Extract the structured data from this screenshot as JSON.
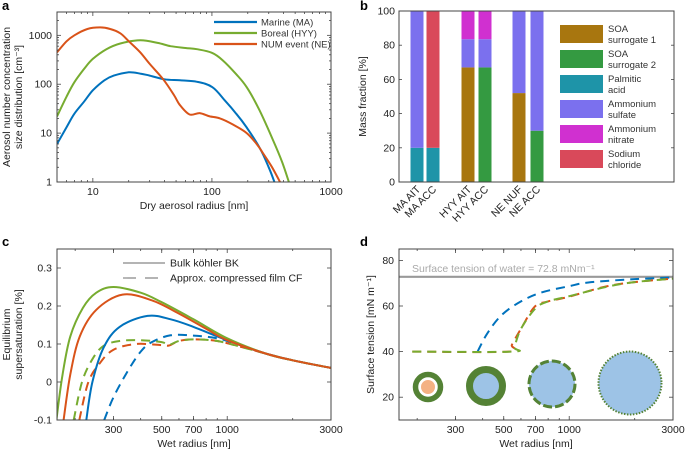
{
  "chart_data": [
    {
      "panel": "a",
      "type": "line",
      "xlabel": "Dry aerosol radius [nm]",
      "ylabel": [
        "Aerosol number concentration",
        "size distribution [cm⁻³]"
      ],
      "xscale": "log",
      "yscale": "log",
      "xlim": [
        5,
        1000
      ],
      "ylim": [
        1,
        3000
      ],
      "xticks": [
        10,
        100,
        1000
      ],
      "yticks": [
        1,
        10,
        100,
        1000
      ],
      "legend_position": "top-right",
      "series": [
        {
          "name": "Marine (MA)",
          "color": "#0072BD",
          "style": "solid",
          "points": [
            [
              5,
              6
            ],
            [
              6,
              13
            ],
            [
              7,
              25
            ],
            [
              8.5,
              45
            ],
            [
              10,
              75
            ],
            [
              12.5,
              120
            ],
            [
              15,
              150
            ],
            [
              20,
              175
            ],
            [
              25,
              165
            ],
            [
              30,
              150
            ],
            [
              40,
              126
            ],
            [
              54,
              120
            ],
            [
              75,
              112
            ],
            [
              101,
              87
            ],
            [
              130,
              45
            ],
            [
              160,
              25
            ],
            [
              196,
              13
            ],
            [
              253,
              4.9
            ],
            [
              300,
              2
            ],
            [
              335,
              1
            ]
          ]
        },
        {
          "name": "Boreal (HYY)",
          "color": "#77AC30",
          "style": "solid",
          "points": [
            [
              5,
              22
            ],
            [
              6,
              55
            ],
            [
              7,
              110
            ],
            [
              8.5,
              210
            ],
            [
              10,
              330
            ],
            [
              13,
              520
            ],
            [
              17,
              680
            ],
            [
              25,
              790
            ],
            [
              35,
              700
            ],
            [
              45,
              600
            ],
            [
              60,
              550
            ],
            [
              75,
              520
            ],
            [
              100,
              440
            ],
            [
              123,
              310
            ],
            [
              160,
              160
            ],
            [
              196,
              87
            ],
            [
              250,
              30
            ],
            [
              326,
              7.2
            ],
            [
              390,
              2.5
            ],
            [
              443,
              1
            ]
          ]
        },
        {
          "name": "NUM event (NE)",
          "color": "#D95319",
          "style": "solid",
          "points": [
            [
              5,
              450
            ],
            [
              6,
              750
            ],
            [
              7,
              1000
            ],
            [
              9,
              1350
            ],
            [
              11.5,
              1450
            ],
            [
              14,
              1350
            ],
            [
              17,
              1100
            ],
            [
              20,
              760
            ],
            [
              25,
              450
            ],
            [
              30,
              260
            ],
            [
              39,
              126
            ],
            [
              48,
              60
            ],
            [
              54,
              37
            ],
            [
              65,
              24
            ],
            [
              79,
              25.6
            ],
            [
              96,
              22
            ],
            [
              117,
              20
            ],
            [
              150,
              15
            ],
            [
              196,
              10
            ],
            [
              240,
              5.8
            ],
            [
              268,
              3.9
            ],
            [
              320,
              2
            ],
            [
              373,
              1
            ]
          ]
        }
      ]
    },
    {
      "panel": "b",
      "type": "bar",
      "stacked": true,
      "ylabel": "Mass fraction [%]",
      "ylim": [
        0,
        100
      ],
      "yticks": [
        0,
        20,
        40,
        60,
        80,
        100
      ],
      "categories": [
        "MA AIT",
        "MA ACC",
        "HYY AIT",
        "HYY ACC",
        "NE NUF",
        "NE ACC"
      ],
      "legend_position": "right",
      "series": [
        {
          "name": "SOA surrogate 1",
          "lines": [
            "SOA",
            "surrogate 1"
          ],
          "color": "#A8760F",
          "values": [
            0,
            0,
            67,
            0,
            52,
            0
          ]
        },
        {
          "name": "SOA surrogate 2",
          "lines": [
            "SOA",
            "surrogate 2"
          ],
          "color": "#349A41",
          "values": [
            0,
            0,
            0,
            67,
            0,
            30
          ]
        },
        {
          "name": "Palmitic acid",
          "lines": [
            "Palmitic",
            "acid"
          ],
          "color": "#1E94A8",
          "values": [
            20,
            20,
            0,
            0,
            0,
            0
          ]
        },
        {
          "name": "Ammonium sulfate",
          "lines": [
            "Ammonium",
            "sulfate"
          ],
          "color": "#7B70EE",
          "values": [
            80,
            0,
            16.5,
            16.5,
            48,
            70
          ]
        },
        {
          "name": "Ammonium nitrate",
          "lines": [
            "Ammonium",
            "nitrate"
          ],
          "color": "#D030D0",
          "values": [
            0,
            0,
            16.5,
            16.5,
            0,
            0
          ]
        },
        {
          "name": "Sodium chloride",
          "lines": [
            "Sodium",
            "chloride"
          ],
          "color": "#D9495A",
          "values": [
            0,
            80,
            0,
            0,
            0,
            0
          ]
        }
      ]
    },
    {
      "panel": "c",
      "type": "line",
      "xlabel": "Wet radius [nm]",
      "ylabel": [
        "Equilibrium",
        "supersaturation [%]"
      ],
      "xscale": "log",
      "yscale": "linear",
      "xlim": [
        165,
        3000
      ],
      "ylim": [
        -0.1,
        0.35
      ],
      "xticks": [
        300,
        500,
        700,
        1000,
        3000
      ],
      "yticks": [
        -0.1,
        0,
        0.1,
        0.2,
        0.3
      ],
      "legend_position": "top",
      "legend": [
        {
          "label": "Bulk köhler BK",
          "style": "solid"
        },
        {
          "label": "Approx. compressed film CF",
          "style": "dashed"
        }
      ],
      "series": [
        {
          "color": "#0072BD",
          "style": "dashed",
          "points": [
            [
              272,
              -0.1
            ],
            [
              300,
              -0.04
            ],
            [
              350,
              0.03
            ],
            [
              400,
              0.08
            ],
            [
              450,
              0.105
            ],
            [
              550,
              0.123
            ],
            [
              700,
              0.122
            ],
            [
              900,
              0.115
            ],
            [
              1100,
              0.1
            ],
            [
              1500,
              0.075
            ],
            [
              2000,
              0.057
            ],
            [
              3000,
              0.037
            ]
          ]
        },
        {
          "color": "#D95319",
          "style": "dashed",
          "points": [
            [
              209,
              -0.1
            ],
            [
              230,
              0
            ],
            [
              260,
              0.05
            ],
            [
              300,
              0.085
            ],
            [
              380,
              0.1
            ],
            [
              500,
              0.097
            ],
            [
              540,
              0.096
            ],
            [
              600,
              0.108
            ],
            [
              700,
              0.112
            ],
            [
              900,
              0.108
            ],
            [
              1200,
              0.09
            ],
            [
              1500,
              0.075
            ],
            [
              2000,
              0.057
            ],
            [
              3000,
              0.037
            ]
          ]
        },
        {
          "color": "#77AC30",
          "style": "dashed",
          "points": [
            [
              197,
              -0.1
            ],
            [
              215,
              0
            ],
            [
              240,
              0.06
            ],
            [
              270,
              0.095
            ],
            [
              320,
              0.108
            ],
            [
              400,
              0.11
            ],
            [
              500,
              0.105
            ],
            [
              540,
              0.098
            ],
            [
              600,
              0.108
            ],
            [
              700,
              0.112
            ],
            [
              900,
              0.108
            ],
            [
              1200,
              0.09
            ],
            [
              1500,
              0.075
            ],
            [
              2000,
              0.057
            ],
            [
              3000,
              0.037
            ]
          ]
        },
        {
          "color": "#0072BD",
          "style": "solid",
          "points": [
            [
              225,
              -0.1
            ],
            [
              240,
              0
            ],
            [
              270,
              0.09
            ],
            [
              320,
              0.145
            ],
            [
              430,
              0.174
            ],
            [
              550,
              0.165
            ],
            [
              700,
              0.145
            ],
            [
              1000,
              0.11
            ],
            [
              1500,
              0.075
            ],
            [
              2000,
              0.057
            ],
            [
              3000,
              0.037
            ]
          ]
        },
        {
          "color": "#77AC30",
          "style": "solid",
          "points": [
            [
              164,
              -0.1
            ],
            [
              175,
              0.02
            ],
            [
              190,
              0.12
            ],
            [
              217,
              0.195
            ],
            [
              250,
              0.235
            ],
            [
              300,
              0.25
            ],
            [
              400,
              0.235
            ],
            [
              500,
              0.21
            ],
            [
              700,
              0.165
            ],
            [
              1000,
              0.115
            ],
            [
              1500,
              0.075
            ],
            [
              2000,
              0.057
            ],
            [
              3000,
              0.037
            ]
          ]
        },
        {
          "color": "#D95319",
          "style": "solid",
          "points": [
            [
              177,
              -0.1
            ],
            [
              190,
              0.02
            ],
            [
              210,
              0.12
            ],
            [
              250,
              0.19
            ],
            [
              330,
              0.23
            ],
            [
              450,
              0.215
            ],
            [
              600,
              0.18
            ],
            [
              800,
              0.14
            ],
            [
              1000,
              0.11
            ],
            [
              1500,
              0.075
            ],
            [
              2000,
              0.057
            ],
            [
              3000,
              0.037
            ]
          ]
        }
      ]
    },
    {
      "panel": "d",
      "type": "line",
      "xlabel": "Wet radius [nm]",
      "ylabel": [
        "Surface tension [mN m⁻¹]"
      ],
      "xscale": "log",
      "yscale": "linear",
      "xlim": [
        165,
        3000
      ],
      "ylim": [
        10,
        85
      ],
      "xticks": [
        300,
        500,
        700,
        1000,
        3000
      ],
      "yticks": [
        20,
        40,
        60,
        80
      ],
      "reference_line": {
        "value": 72.8,
        "label": "Surface tension of water = 72.8 mNm⁻¹",
        "color": "#999999"
      },
      "series": [
        {
          "color": "#0072BD",
          "style": "dashed",
          "points": [
            [
              379,
              40
            ],
            [
              420,
              48
            ],
            [
              489,
              56
            ],
            [
              600,
              62
            ],
            [
              750,
              66
            ],
            [
              1000,
              68.7
            ],
            [
              1225,
              70.3
            ],
            [
              2000,
              71.8
            ],
            [
              3000,
              72.5
            ]
          ]
        },
        {
          "color": "#D95319",
          "style": "dashed",
          "points": [
            [
              190,
              40
            ],
            [
              530,
              40
            ],
            [
              545,
              43
            ],
            [
              600,
              50
            ],
            [
              694,
              59.7
            ],
            [
              800,
              62
            ],
            [
              989,
              64
            ],
            [
              1467,
              68.5
            ],
            [
              2000,
              70.5
            ],
            [
              3000,
              72
            ]
          ]
        },
        {
          "color": "#77AC30",
          "style": "dashed",
          "points": [
            [
              190,
              40
            ],
            [
              546,
              40
            ],
            [
              560,
              42
            ],
            [
              600,
              50
            ],
            [
              700,
              59
            ],
            [
              800,
              62
            ],
            [
              1000,
              64.3
            ],
            [
              1500,
              68.5
            ],
            [
              2000,
              70.5
            ],
            [
              3000,
              72
            ]
          ]
        }
      ],
      "droplet_icons": [
        "small-core-thick-shell",
        "medium-core-thick-shell",
        "broken-film",
        "dilute-film"
      ]
    }
  ]
}
